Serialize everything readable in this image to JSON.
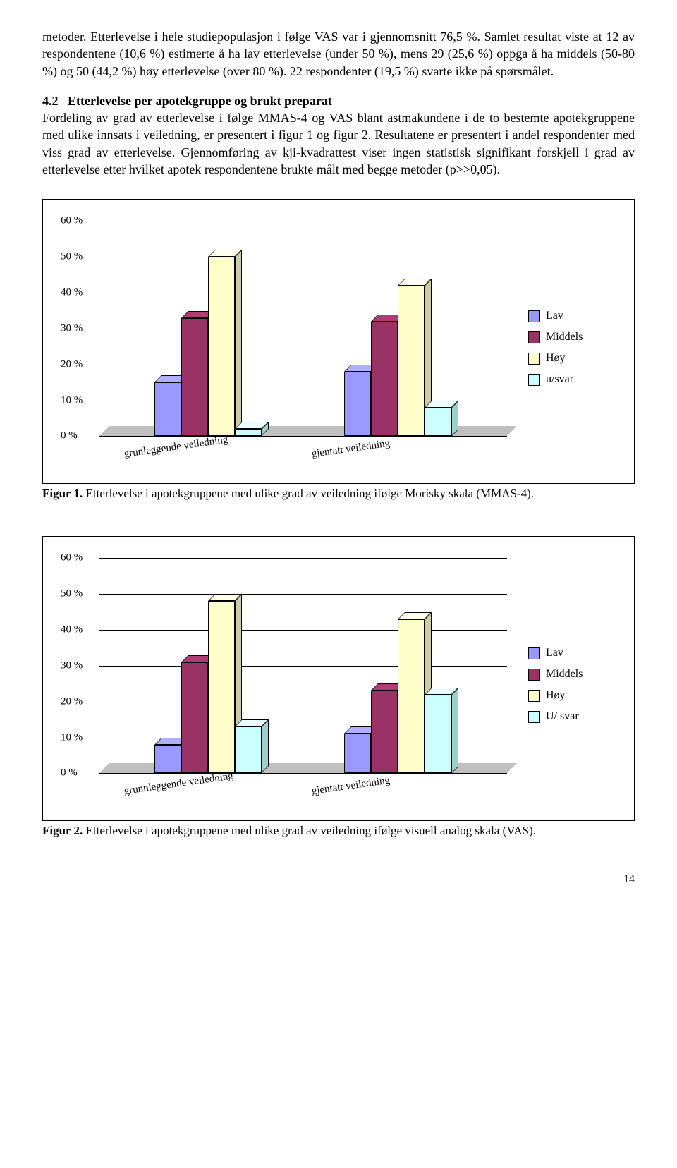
{
  "para1": "metoder. Etterlevelse i hele studiepopulasjon i følge VAS var i gjennomsnitt 76,5 %. Samlet resultat viste at 12 av respondentene (10,6 %) estimerte å ha lav etterlevelse (under 50 %), mens 29 (25,6 %) oppga å ha middels (50-80 %) og 50 (44,2 %) høy etterlevelse (over 80 %). 22 respondenter (19,5 %) svarte ikke på spørsmålet.",
  "section_num": "4.2",
  "section_title": "Etterlevelse per apotekgruppe og brukt preparat",
  "para2": "Fordeling av grad av etterlevelse i følge MMAS-4 og VAS blant astmakundene i de to bestemte apotekgruppene med ulike innsats i veiledning, er presentert i figur 1 og figur 2. Resultatene er presentert i andel respondenter med viss grad av etterlevelse. Gjennomføring av kji-kvadrattest viser ingen statistisk signifikant forskjell i grad av etterlevelse etter hvilket apotek respondentene brukte målt med begge metoder (p>>0,05).",
  "chart1": {
    "type": "bar",
    "ymax": 60,
    "ystep": 10,
    "categories": [
      "grunleggende veiledning",
      "gjentatt veiledning"
    ],
    "series": [
      "Lav",
      "Middels",
      "Høy",
      "u/svar"
    ],
    "colors": [
      "#9999ff",
      "#993366",
      "#ffffcc",
      "#ccffff"
    ],
    "values": [
      [
        15,
        33,
        50,
        2
      ],
      [
        18,
        32,
        42,
        8
      ]
    ],
    "label_fontsize": 15
  },
  "figcap1_label": "Figur 1.",
  "figcap1": "Etterlevelse i apotekgruppene med ulike grad av veiledning ifølge Morisky skala (MMAS-4).",
  "chart2": {
    "type": "bar",
    "ymax": 60,
    "ystep": 10,
    "categories": [
      "grunnleggende veiledning",
      "gjentatt veiledning"
    ],
    "series": [
      "Lav",
      "Middels",
      "Høy",
      "U/ svar"
    ],
    "colors": [
      "#9999ff",
      "#993366",
      "#ffffcc",
      "#ccffff"
    ],
    "values": [
      [
        8,
        31,
        48,
        13
      ],
      [
        11,
        23,
        43,
        22
      ]
    ],
    "label_fontsize": 15
  },
  "figcap2_label": "Figur 2.",
  "figcap2": "Etterlevelse i apotekgruppene med ulike grad av veiledning ifølge visuell analog skala (VAS).",
  "page_num": "14"
}
